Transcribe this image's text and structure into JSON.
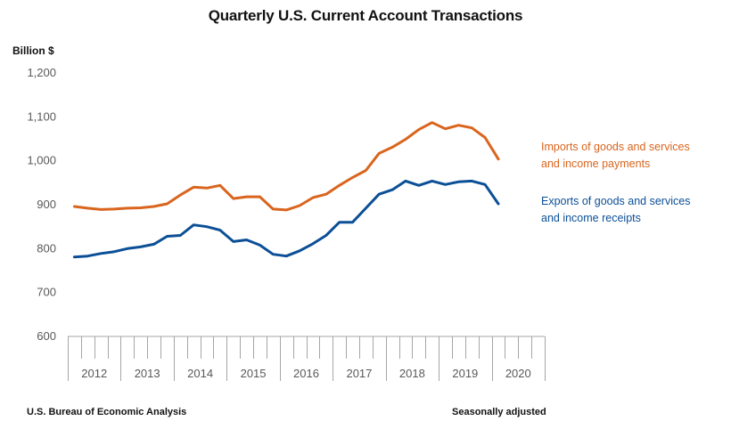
{
  "chart_data": {
    "type": "line",
    "title": "Quarterly U.S. Current Account Transactions",
    "ylabel": "Billion $",
    "xlabel": "",
    "ylim": [
      600,
      1200
    ],
    "yticks": [
      600,
      700,
      800,
      900,
      1000,
      1100,
      1200
    ],
    "ytick_labels": [
      "600",
      "700",
      "800",
      "900",
      "1,000",
      "1,100",
      "1,200"
    ],
    "year_labels": [
      "2012",
      "2013",
      "2014",
      "2015",
      "2016",
      "2017",
      "2018",
      "2019",
      "2020"
    ],
    "quarters_per_year": 4,
    "x": [
      "2012Q1",
      "2012Q2",
      "2012Q3",
      "2012Q4",
      "2013Q1",
      "2013Q2",
      "2013Q3",
      "2013Q4",
      "2014Q1",
      "2014Q2",
      "2014Q3",
      "2014Q4",
      "2015Q1",
      "2015Q2",
      "2015Q3",
      "2015Q4",
      "2016Q1",
      "2016Q2",
      "2016Q3",
      "2016Q4",
      "2017Q1",
      "2017Q2",
      "2017Q3",
      "2017Q4",
      "2018Q1",
      "2018Q2",
      "2018Q3",
      "2018Q4",
      "2019Q1",
      "2019Q2",
      "2019Q3",
      "2019Q4",
      "2020Q1"
    ],
    "grid": false,
    "legend_placement": "right",
    "series": [
      {
        "name": "Imports of goods and services and income payments",
        "legend_lines": [
          "Imports of goods and services",
          "and income payments"
        ],
        "color": "#D9651E",
        "values": [
          896,
          892,
          889,
          890,
          892,
          893,
          896,
          902,
          922,
          940,
          938,
          944,
          914,
          918,
          918,
          890,
          888,
          898,
          916,
          924,
          944,
          962,
          978,
          1017,
          1031,
          1049,
          1071,
          1087,
          1073,
          1081,
          1075,
          1053,
          1004
        ]
      },
      {
        "name": "Exports of goods and services and income receipts",
        "legend_lines": [
          "Exports of goods and services",
          "and income receipts"
        ],
        "color": "#0B4F96",
        "values": [
          781,
          783,
          789,
          793,
          800,
          804,
          810,
          828,
          830,
          854,
          850,
          842,
          816,
          820,
          808,
          787,
          783,
          795,
          811,
          830,
          860,
          860,
          892,
          924,
          934,
          954,
          944,
          954,
          946,
          952,
          954,
          946,
          902
        ]
      }
    ]
  },
  "footer": {
    "source": "U.S. Bureau of Economic Analysis",
    "note": "Seasonally adjusted"
  }
}
